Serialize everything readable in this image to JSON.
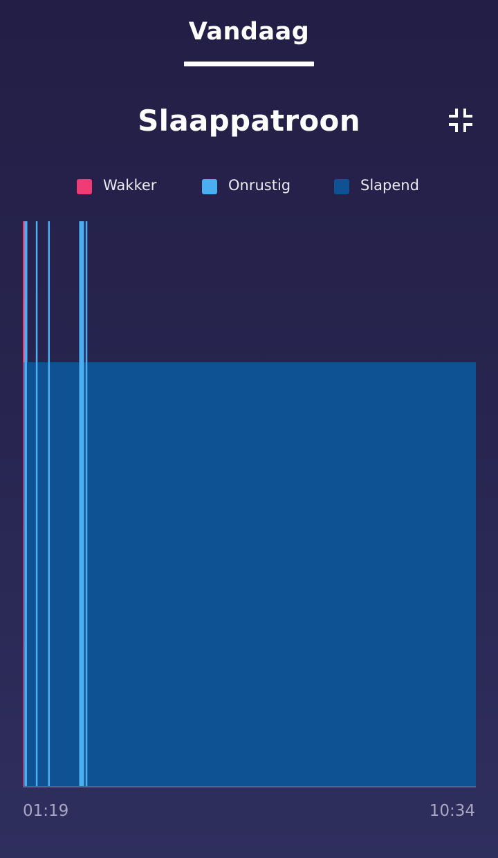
{
  "tabs": {
    "active_label": "Vandaag"
  },
  "icons": {
    "collapse": "collapse-icon"
  },
  "colors": {
    "awake": "#f13b75",
    "restless": "#4aaef0",
    "asleep": "#0e5294"
  },
  "chart_data": {
    "type": "timeline",
    "title": "Slaappatroon",
    "legend": [
      {
        "name": "Wakker",
        "color": "#f13b75"
      },
      {
        "name": "Onrustig",
        "color": "#4aaef0"
      },
      {
        "name": "Slapend",
        "color": "#0e5294"
      }
    ],
    "legend_position": "top",
    "grid": false,
    "x_start_label": "01:19",
    "x_end_label": "10:34",
    "xlim": [
      "01:19",
      "10:34"
    ],
    "levels": [
      "Wakker",
      "Onrustig",
      "Slapend"
    ],
    "segments": [
      {
        "state": "Wakker",
        "start": "01:19",
        "end": "01:20"
      },
      {
        "state": "Slapend",
        "start": "01:20",
        "end": "01:22"
      },
      {
        "state": "Onrustig",
        "start": "01:22",
        "end": "01:23"
      },
      {
        "state": "Slapend",
        "start": "01:23",
        "end": "10:34"
      }
    ],
    "restless_marks": [
      "01:22",
      "01:23",
      "01:36",
      "01:51",
      "02:31",
      "02:37"
    ]
  }
}
